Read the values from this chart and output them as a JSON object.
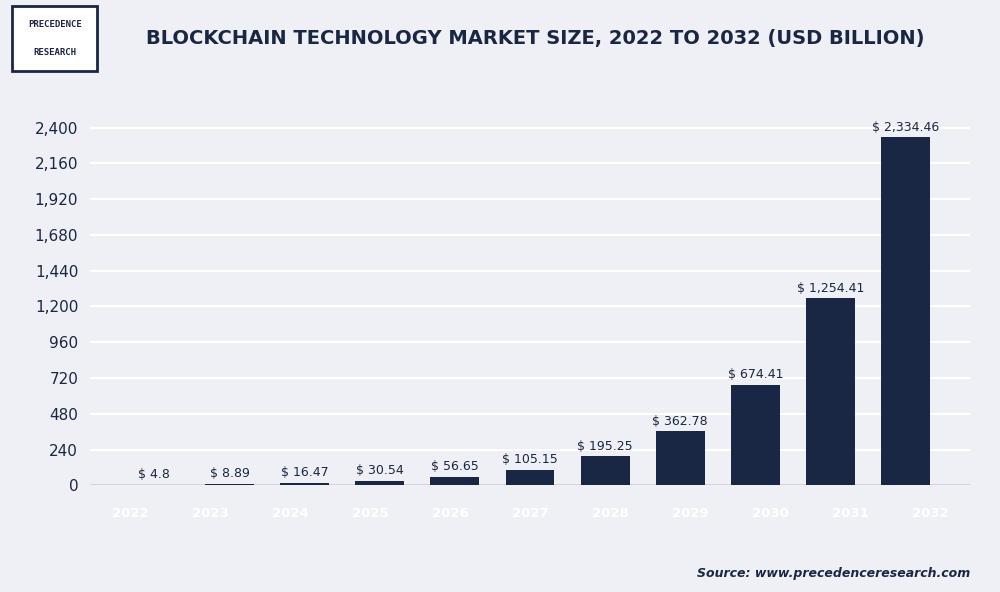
{
  "title": "BLOCKCHAIN TECHNOLOGY MARKET SIZE, 2022 TO 2032 (USD BILLION)",
  "years": [
    "2022",
    "2023",
    "2024",
    "2025",
    "2026",
    "2027",
    "2028",
    "2029",
    "2030",
    "2031",
    "2032"
  ],
  "values": [
    4.8,
    8.89,
    16.47,
    30.54,
    56.65,
    105.15,
    195.25,
    362.78,
    674.41,
    1254.41,
    2334.46
  ],
  "labels": [
    "$ 4.8",
    "$ 8.89",
    "$ 16.47",
    "$ 30.54",
    "$ 56.65",
    "$ 105.15",
    "$ 195.25",
    "$ 362.78",
    "$ 674.41",
    "$ 1,254.41",
    "$ 2,334.46"
  ],
  "bar_color_first": "#9baec8",
  "bar_color_rest": "#1a2744",
  "tick_color_first": "#8fa8cc",
  "tick_color_rest": "#1a2744",
  "bg_color": "#eef0f5",
  "plot_bg_color": "#eef0f5",
  "grid_color": "#ffffff",
  "yticks": [
    0,
    240,
    480,
    720,
    960,
    1200,
    1440,
    1680,
    1920,
    2160,
    2400
  ],
  "ylim": [
    0,
    2600
  ],
  "source_text": "Source: www.precedenceresearch.com",
  "logo_text_line1": "PRECEDENCE",
  "logo_text_line2": "RESEARCH",
  "title_color": "#1a2744",
  "label_fontsize": 9,
  "title_fontsize": 14,
  "axis_tick_fontsize": 11,
  "sep_color": "#b0b8cc"
}
